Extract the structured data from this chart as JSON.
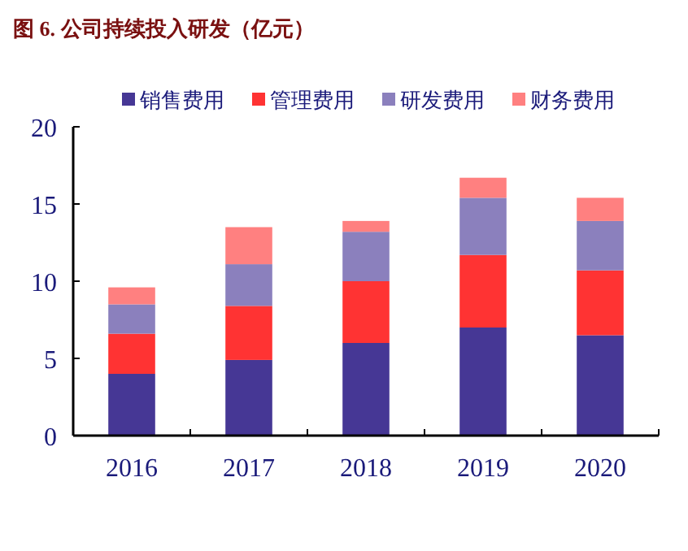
{
  "chart_data": {
    "type": "bar",
    "title": "图 6. 公司持续投入研发（亿元）",
    "categories": [
      "2016",
      "2017",
      "2018",
      "2019",
      "2020"
    ],
    "stacked": true,
    "ylim": [
      0,
      20
    ],
    "yticks": [
      0,
      5,
      10,
      15,
      20
    ],
    "legend": "top",
    "grid": false,
    "series": [
      {
        "name": "销售费用",
        "color": "#463795",
        "values": [
          4.0,
          4.9,
          6.0,
          7.0,
          6.5
        ]
      },
      {
        "name": "管理费用",
        "color": "#ff3333",
        "values": [
          2.6,
          3.5,
          4.0,
          4.7,
          4.2
        ]
      },
      {
        "name": "研发费用",
        "color": "#8b80bd",
        "values": [
          1.9,
          2.7,
          3.2,
          3.7,
          3.2
        ]
      },
      {
        "name": "财务费用",
        "color": "#ff8080",
        "values": [
          1.1,
          2.4,
          0.7,
          1.3,
          1.5
        ]
      }
    ]
  }
}
